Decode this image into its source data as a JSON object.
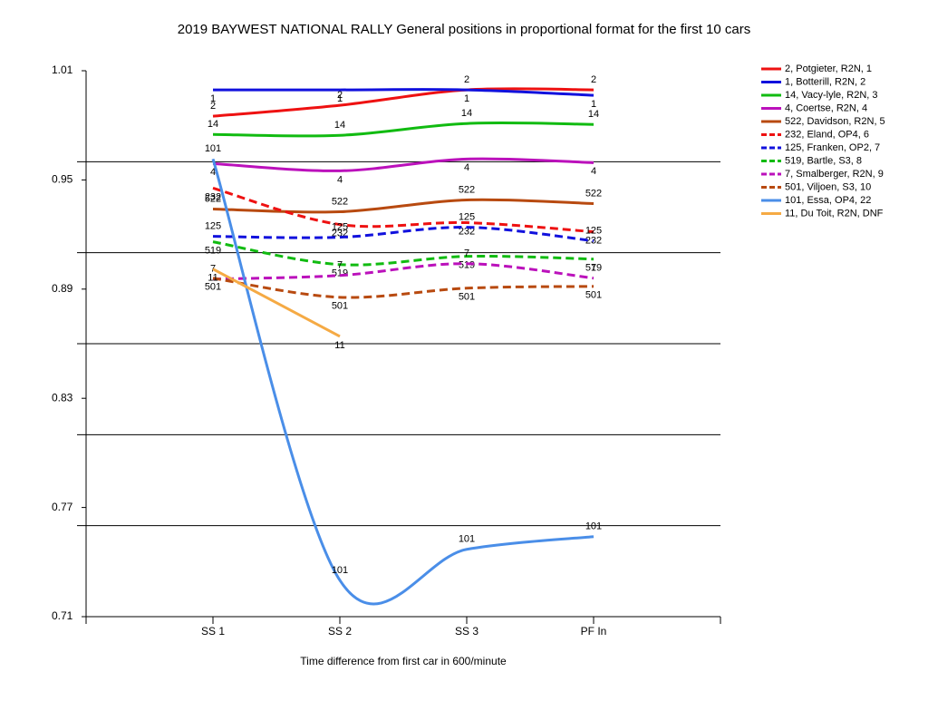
{
  "chart_data": {
    "type": "line",
    "title": "2019 BAYWEST NATIONAL RALLY  General positions in proportional format for the first 10 cars",
    "x_label": "Time difference from first car in 600/minute",
    "categories": [
      "SS 1",
      "SS 2",
      "SS 3",
      "PF In"
    ],
    "ylim": [
      0.71,
      1.01
    ],
    "yticks": [
      0.71,
      0.77,
      0.83,
      0.89,
      0.95,
      1.01
    ],
    "ygrid": [
      0.76,
      0.81,
      0.86,
      0.91,
      0.96
    ],
    "smooth": true,
    "legend": "right",
    "series": [
      {
        "name": "2, Potgieter, R2N, 1",
        "label": "2",
        "color": "#ee1111",
        "dashed": false,
        "values": [
          0.985,
          0.991,
          0.9995,
          0.9995
        ]
      },
      {
        "name": "1, Botterill, R2N, 2",
        "label": "1",
        "color": "#1111dd",
        "dashed": false,
        "values": [
          0.9995,
          0.9995,
          0.9995,
          0.9965
        ]
      },
      {
        "name": "14, Vacy-lyle, R2N, 3",
        "label": "14",
        "color": "#11bb11",
        "dashed": false,
        "values": [
          0.975,
          0.9745,
          0.981,
          0.9805
        ]
      },
      {
        "name": "4, Coertse, R2N, 4",
        "label": "4",
        "color": "#bb11bb",
        "dashed": false,
        "values": [
          0.959,
          0.955,
          0.9615,
          0.9595
        ]
      },
      {
        "name": "522, Davidson, R2N, 5",
        "label": "522",
        "color": "#b84a10",
        "dashed": false,
        "values": [
          0.934,
          0.9325,
          0.939,
          0.937
        ]
      },
      {
        "name": "232, Eland, OP4, 6",
        "label": "232",
        "color": "#ee1111",
        "dashed": true,
        "values": [
          0.9455,
          0.9255,
          0.9265,
          0.9215
        ]
      },
      {
        "name": "125, Franken, OP2, 7",
        "label": "125",
        "color": "#1111dd",
        "dashed": true,
        "values": [
          0.919,
          0.9185,
          0.924,
          0.9165
        ]
      },
      {
        "name": "519, Bartle, S3, 8",
        "label": "519",
        "color": "#11bb11",
        "dashed": true,
        "values": [
          0.916,
          0.9035,
          0.908,
          0.9065
        ]
      },
      {
        "name": "7, Smalberger, R2N, 9",
        "label": "7",
        "color": "#bb11bb",
        "dashed": true,
        "values": [
          0.8955,
          0.8975,
          0.904,
          0.896
        ]
      },
      {
        "name": "501, Viljoen, S3, 10",
        "label": "501",
        "color": "#b84a10",
        "dashed": true,
        "values": [
          0.896,
          0.8855,
          0.8905,
          0.8915
        ]
      },
      {
        "name": "101, Essa, OP4, 22",
        "label": "101",
        "color": "#4a8ee8",
        "dashed": false,
        "values": [
          0.9615,
          0.73,
          0.747,
          0.754
        ]
      },
      {
        "name": "11, Du Toit, R2N, DNF",
        "label": "11",
        "color": "#f5aa44",
        "dashed": false,
        "values": [
          0.901,
          0.864,
          null,
          null
        ]
      }
    ]
  }
}
